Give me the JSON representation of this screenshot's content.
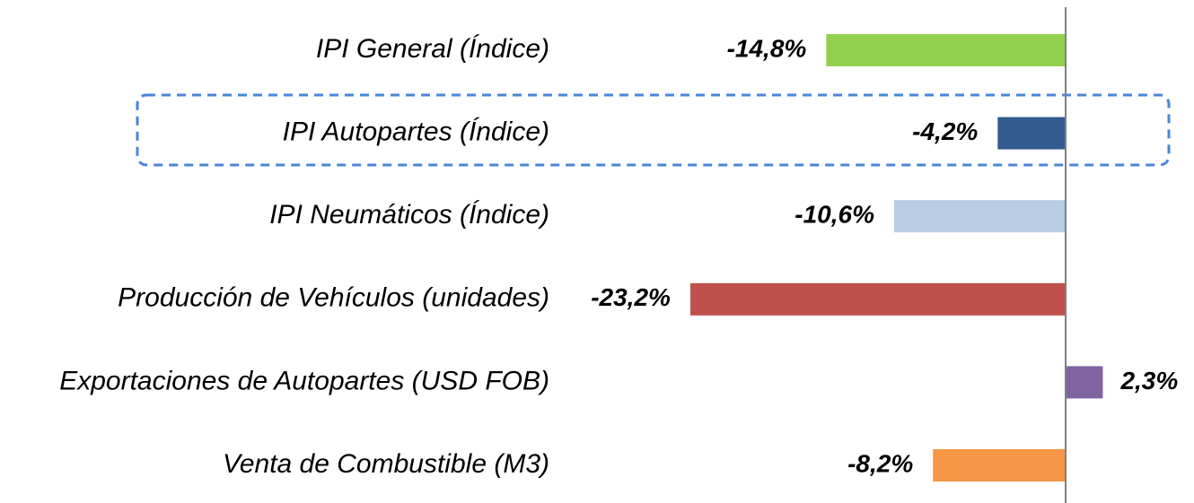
{
  "chart_data": {
    "type": "hbar",
    "categories": [
      "IPI General (Índice)",
      "IPI Autopartes (Índice)",
      "IPI Neumáticos (Índice)",
      "Producción de Vehículos (unidades)",
      "Exportaciones de Autopartes (USD FOB)",
      "Venta de Combustible (M3)"
    ],
    "values": [
      -14.8,
      -4.2,
      -10.6,
      -23.2,
      2.3,
      -8.2
    ],
    "value_labels": [
      "-14,8%",
      "-4,2%",
      "-10,6%",
      "-23,2%",
      "2,3%",
      "-8,2%"
    ],
    "colors": [
      "#92d050",
      "#335b8e",
      "#b8cce4",
      "#c0504d",
      "#8064a2",
      "#f79646"
    ],
    "xlim": [
      -25,
      5
    ]
  }
}
